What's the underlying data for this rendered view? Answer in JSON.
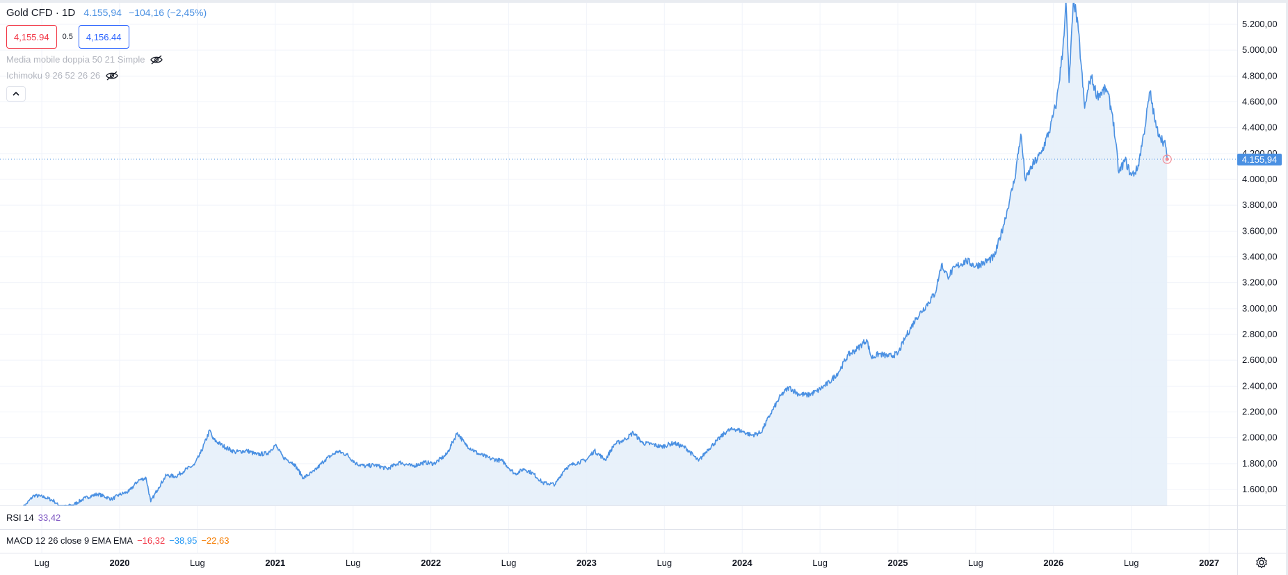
{
  "header": {
    "symbol": "Gold CFD",
    "separator": "·",
    "interval": "1D",
    "last_price": "4.155,94",
    "change": "−104,16 (−2,45%)"
  },
  "trade": {
    "sell_price": "4,155.94",
    "spread": "0.5",
    "buy_price": "4,156.44"
  },
  "indicators": [
    {
      "label": "Media mobile doppia 50 21 Simple",
      "icon": "eye-off-icon"
    },
    {
      "label": "Ichimoku 9 26 52 26 26",
      "icon": "eye-off-icon"
    }
  ],
  "panes": {
    "rsi": {
      "label": "RSI 14",
      "value": "33,42"
    },
    "macd": {
      "label": "MACD 12 26 close 9 EMA EMA",
      "macd": "−16,32",
      "signal": "−38,95",
      "hist": "−22,63"
    }
  },
  "price_tag": "4.155,94",
  "colors": {
    "line": "#4a90e2",
    "area": "#e6eff9",
    "sell": "#f23645",
    "buy": "#2962ff",
    "rsi": "#7e57c2"
  },
  "chart_data": {
    "type": "area",
    "y_ticks": [
      "1.600,00",
      "1.800,00",
      "2.000,00",
      "2.200,00",
      "2.400,00",
      "2.600,00",
      "2.800,00",
      "3.000,00",
      "3.200,00",
      "3.400,00",
      "3.600,00",
      "3.800,00",
      "4.000,00",
      "4.200,00",
      "4.400,00",
      "4.600,00",
      "4.800,00",
      "5.000,00",
      "5.200,00"
    ],
    "y_tick_values": [
      1600,
      1800,
      2000,
      2200,
      2400,
      2600,
      2800,
      3000,
      3200,
      3400,
      3600,
      3800,
      4000,
      4200,
      4400,
      4600,
      4800,
      5000,
      5200
    ],
    "ylim": [
      1480,
      5400
    ],
    "x_ticks": [
      {
        "label": "Lug",
        "t": 2019.5,
        "bold": false
      },
      {
        "label": "2020",
        "t": 2020.0,
        "bold": true
      },
      {
        "label": "Lug",
        "t": 2020.5,
        "bold": false
      },
      {
        "label": "2021",
        "t": 2021.0,
        "bold": true
      },
      {
        "label": "Lug",
        "t": 2021.5,
        "bold": false
      },
      {
        "label": "2022",
        "t": 2022.0,
        "bold": true
      },
      {
        "label": "Lug",
        "t": 2022.5,
        "bold": false
      },
      {
        "label": "2023",
        "t": 2023.0,
        "bold": true
      },
      {
        "label": "Lug",
        "t": 2023.5,
        "bold": false
      },
      {
        "label": "2024",
        "t": 2024.0,
        "bold": true
      },
      {
        "label": "Lug",
        "t": 2024.5,
        "bold": false
      },
      {
        "label": "2025",
        "t": 2025.0,
        "bold": true
      },
      {
        "label": "Lug",
        "t": 2025.5,
        "bold": false
      },
      {
        "label": "2026",
        "t": 2026.0,
        "bold": true
      },
      {
        "label": "Lug",
        "t": 2026.5,
        "bold": false
      },
      {
        "label": "2027",
        "t": 2027.0,
        "bold": true
      }
    ],
    "last_value": 4155.94,
    "series": [
      {
        "points": [
          [
            2019.38,
            1460
          ],
          [
            2019.45,
            1555
          ],
          [
            2019.52,
            1540
          ],
          [
            2019.58,
            1510
          ],
          [
            2019.62,
            1460
          ],
          [
            2019.7,
            1480
          ],
          [
            2019.78,
            1535
          ],
          [
            2019.86,
            1565
          ],
          [
            2019.95,
            1525
          ],
          [
            2020.0,
            1560
          ],
          [
            2020.06,
            1585
          ],
          [
            2020.12,
            1670
          ],
          [
            2020.17,
            1690
          ],
          [
            2020.2,
            1505
          ],
          [
            2020.25,
            1615
          ],
          [
            2020.3,
            1710
          ],
          [
            2020.36,
            1700
          ],
          [
            2020.42,
            1750
          ],
          [
            2020.48,
            1790
          ],
          [
            2020.52,
            1880
          ],
          [
            2020.58,
            2060
          ],
          [
            2020.6,
            1990
          ],
          [
            2020.66,
            1940
          ],
          [
            2020.74,
            1890
          ],
          [
            2020.82,
            1900
          ],
          [
            2020.88,
            1870
          ],
          [
            2020.95,
            1880
          ],
          [
            2021.0,
            1945
          ],
          [
            2021.05,
            1850
          ],
          [
            2021.12,
            1800
          ],
          [
            2021.18,
            1690
          ],
          [
            2021.25,
            1740
          ],
          [
            2021.32,
            1830
          ],
          [
            2021.4,
            1895
          ],
          [
            2021.46,
            1870
          ],
          [
            2021.52,
            1800
          ],
          [
            2021.58,
            1780
          ],
          [
            2021.64,
            1790
          ],
          [
            2021.72,
            1760
          ],
          [
            2021.8,
            1810
          ],
          [
            2021.88,
            1780
          ],
          [
            2021.96,
            1810
          ],
          [
            2022.02,
            1800
          ],
          [
            2022.1,
            1870
          ],
          [
            2022.17,
            2040
          ],
          [
            2022.22,
            1950
          ],
          [
            2022.3,
            1880
          ],
          [
            2022.38,
            1840
          ],
          [
            2022.46,
            1820
          ],
          [
            2022.54,
            1720
          ],
          [
            2022.6,
            1760
          ],
          [
            2022.66,
            1720
          ],
          [
            2022.72,
            1650
          ],
          [
            2022.8,
            1640
          ],
          [
            2022.86,
            1760
          ],
          [
            2022.92,
            1800
          ],
          [
            2023.0,
            1830
          ],
          [
            2023.05,
            1900
          ],
          [
            2023.12,
            1830
          ],
          [
            2023.18,
            1950
          ],
          [
            2023.25,
            1990
          ],
          [
            2023.3,
            2040
          ],
          [
            2023.36,
            1960
          ],
          [
            2023.42,
            1950
          ],
          [
            2023.48,
            1930
          ],
          [
            2023.56,
            1960
          ],
          [
            2023.64,
            1920
          ],
          [
            2023.72,
            1820
          ],
          [
            2023.78,
            1910
          ],
          [
            2023.84,
            1980
          ],
          [
            2023.9,
            2050
          ],
          [
            2023.95,
            2070
          ],
          [
            2024.0,
            2050
          ],
          [
            2024.06,
            2020
          ],
          [
            2024.12,
            2040
          ],
          [
            2024.18,
            2180
          ],
          [
            2024.25,
            2330
          ],
          [
            2024.3,
            2390
          ],
          [
            2024.36,
            2340
          ],
          [
            2024.42,
            2330
          ],
          [
            2024.48,
            2360
          ],
          [
            2024.56,
            2430
          ],
          [
            2024.62,
            2510
          ],
          [
            2024.68,
            2640
          ],
          [
            2024.74,
            2690
          ],
          [
            2024.8,
            2760
          ],
          [
            2024.83,
            2620
          ],
          [
            2024.88,
            2650
          ],
          [
            2024.94,
            2630
          ],
          [
            2025.0,
            2650
          ],
          [
            2025.05,
            2780
          ],
          [
            2025.12,
            2930
          ],
          [
            2025.18,
            3020
          ],
          [
            2025.24,
            3120
          ],
          [
            2025.28,
            3340
          ],
          [
            2025.32,
            3250
          ],
          [
            2025.38,
            3330
          ],
          [
            2025.44,
            3370
          ],
          [
            2025.5,
            3330
          ],
          [
            2025.56,
            3360
          ],
          [
            2025.62,
            3400
          ],
          [
            2025.68,
            3650
          ],
          [
            2025.72,
            3850
          ],
          [
            2025.75,
            4000
          ],
          [
            2025.79,
            4350
          ],
          [
            2025.82,
            3990
          ],
          [
            2025.86,
            4100
          ],
          [
            2025.92,
            4200
          ],
          [
            2025.98,
            4400
          ],
          [
            2026.02,
            4600
          ],
          [
            2026.06,
            5000
          ],
          [
            2026.08,
            5380
          ],
          [
            2026.1,
            4750
          ],
          [
            2026.13,
            5400
          ],
          [
            2026.16,
            5150
          ],
          [
            2026.2,
            4550
          ],
          [
            2026.24,
            4800
          ],
          [
            2026.28,
            4650
          ],
          [
            2026.34,
            4700
          ],
          [
            2026.38,
            4500
          ],
          [
            2026.42,
            4050
          ],
          [
            2026.46,
            4150
          ],
          [
            2026.5,
            4030
          ],
          [
            2026.54,
            4080
          ],
          [
            2026.58,
            4350
          ],
          [
            2026.62,
            4680
          ],
          [
            2026.66,
            4400
          ],
          [
            2026.68,
            4350
          ],
          [
            2026.72,
            4260
          ],
          [
            2026.73,
            4155.94
          ]
        ]
      }
    ]
  }
}
